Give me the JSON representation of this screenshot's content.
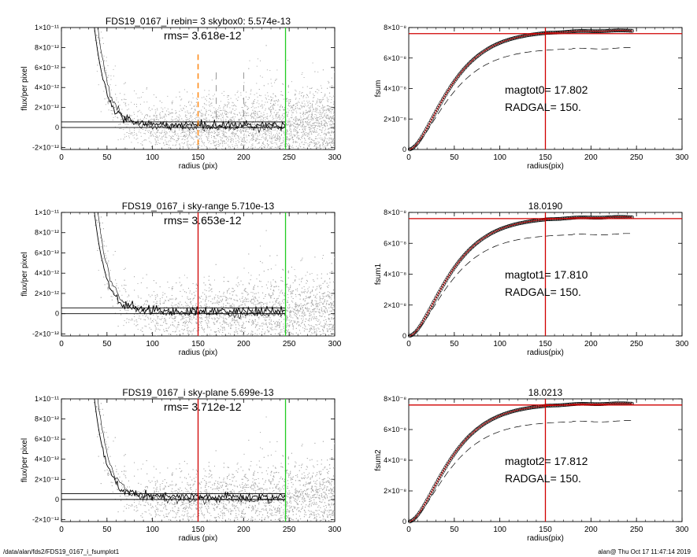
{
  "footer": {
    "left": "/data/alan/fds2/FDS19_0167_i_fsumplot1",
    "right": "alan@  Thu Oct 17 11:47:14 2019"
  },
  "colors": {
    "scatter": "#a8a8a8",
    "profile": "#000000",
    "red_line": "#d00000",
    "green_line": "#22cc22",
    "orange_dash": "#ff8c1a"
  },
  "chart_data": [
    {
      "type": "scatter",
      "title": "FDS19_0167_i rebin= 3    skybox0:  5.574e-13",
      "annotation": "rms= 3.618e-12",
      "xlabel": "radius (pix)",
      "ylabel": "flux/per pixel",
      "xlim": [
        0,
        300
      ],
      "ylim": [
        -2.2e-12,
        1e-11
      ],
      "xticks": [
        0,
        50,
        100,
        150,
        200,
        250,
        300
      ],
      "yticks": [
        -2e-12,
        0,
        2e-12,
        4e-12,
        6e-12,
        8e-12,
        1e-11
      ],
      "ytick_labels": [
        "-2×10⁻¹²",
        "0",
        "2×10⁻¹²",
        "4×10⁻¹²",
        "6×10⁻¹²",
        "8×10⁻¹²",
        "1×10⁻¹¹"
      ],
      "hlines": [
        5.574e-13,
        0
      ],
      "vline_main": {
        "x": 150,
        "style": "orange-dashed"
      },
      "vline_limit": {
        "x": 246,
        "style": "green"
      },
      "extra_dashed_x": [
        170,
        200
      ]
    },
    {
      "type": "line",
      "ylabel": "fsum",
      "xlabel": "radius(pix)",
      "xlim": [
        0,
        300
      ],
      "ylim": [
        0,
        8e-08
      ],
      "xticks": [
        0,
        50,
        100,
        150,
        200,
        250,
        300
      ],
      "yticks": [
        0,
        2e-08,
        4e-08,
        6e-08,
        8e-08
      ],
      "ytick_labels": [
        "0",
        "2×10⁻⁸",
        "4×10⁻⁸",
        "6×10⁻⁸",
        "8×10⁻⁸"
      ],
      "hline": 7.6e-08,
      "vline": 150,
      "annotation1": "magtot0=  17.802",
      "annotation2": "RADGAL=    150.",
      "asymptote": 7.8e-08,
      "dashed_asymptote": 7e-08
    },
    {
      "type": "scatter",
      "title": "FDS19_0167_i sky-range  5.710e-13",
      "annotation": "rms= 3.653e-12",
      "xlabel": "radius (pix)",
      "ylabel": "flux/per pixel",
      "xlim": [
        0,
        300
      ],
      "ylim": [
        -2.2e-12,
        1e-11
      ],
      "xticks": [
        0,
        50,
        100,
        150,
        200,
        250,
        300
      ],
      "yticks": [
        -2e-12,
        0,
        2e-12,
        4e-12,
        6e-12,
        8e-12,
        1e-11
      ],
      "ytick_labels": [
        "-2×10⁻¹²",
        "0",
        "2×10⁻¹²",
        "4×10⁻¹²",
        "6×10⁻¹²",
        "8×10⁻¹²",
        "1×10⁻¹¹"
      ],
      "hlines": [
        5.71e-13,
        0
      ],
      "vline_main": {
        "x": 150,
        "style": "red"
      },
      "vline_limit": {
        "x": 246,
        "style": "green"
      },
      "extra_dashed_x": []
    },
    {
      "type": "line",
      "title": "18.0190",
      "ylabel": "fsum1",
      "xlabel": "radius(pix)",
      "xlim": [
        0,
        300
      ],
      "ylim": [
        0,
        8e-08
      ],
      "xticks": [
        0,
        50,
        100,
        150,
        200,
        250,
        300
      ],
      "yticks": [
        0,
        2e-08,
        4e-08,
        6e-08,
        8e-08
      ],
      "ytick_labels": [
        "0",
        "2×10⁻⁸",
        "4×10⁻⁸",
        "6×10⁻⁸",
        "8×10⁻⁸"
      ],
      "hline": 7.6e-08,
      "vline": 150,
      "annotation1": "magtot1=  17.810",
      "annotation2": "RADGAL=    150.",
      "asymptote": 7.7e-08,
      "dashed_asymptote": 6.95e-08
    },
    {
      "type": "scatter",
      "title": "FDS19_0167_i sky-plane  5.699e-13",
      "annotation": "rms= 3.712e-12",
      "xlabel": "radius (pix)",
      "ylabel": "flux/per pixel",
      "xlim": [
        0,
        300
      ],
      "ylim": [
        -2.2e-12,
        1e-11
      ],
      "xticks": [
        0,
        50,
        100,
        150,
        200,
        250,
        300
      ],
      "yticks": [
        -2e-12,
        0,
        2e-12,
        4e-12,
        6e-12,
        8e-12,
        1e-11
      ],
      "ytick_labels": [
        "-2×10⁻¹²",
        "0",
        "2×10⁻¹²",
        "4×10⁻¹²",
        "6×10⁻¹²",
        "8×10⁻¹²",
        "1×10⁻¹¹"
      ],
      "hlines": [
        5.699e-13,
        0
      ],
      "vline_main": {
        "x": 150,
        "style": "red"
      },
      "vline_limit": {
        "x": 246,
        "style": "green"
      },
      "extra_dashed_x": []
    },
    {
      "type": "line",
      "title": "18.0213",
      "ylabel": "fsum2",
      "xlabel": "radius(pix)",
      "xlim": [
        0,
        300
      ],
      "ylim": [
        0,
        8e-08
      ],
      "xticks": [
        0,
        50,
        100,
        150,
        200,
        250,
        300
      ],
      "yticks": [
        0,
        2e-08,
        4e-08,
        6e-08,
        8e-08
      ],
      "ytick_labels": [
        "0",
        "2×10⁻⁸",
        "4×10⁻⁸",
        "6×10⁻⁸",
        "8×10⁻⁸"
      ],
      "hline": 7.6e-08,
      "vline": 150,
      "annotation1": "magtot2=  17.812",
      "annotation2": "RADGAL=    150.",
      "asymptote": 7.7e-08,
      "dashed_asymptote": 6.9e-08
    }
  ]
}
